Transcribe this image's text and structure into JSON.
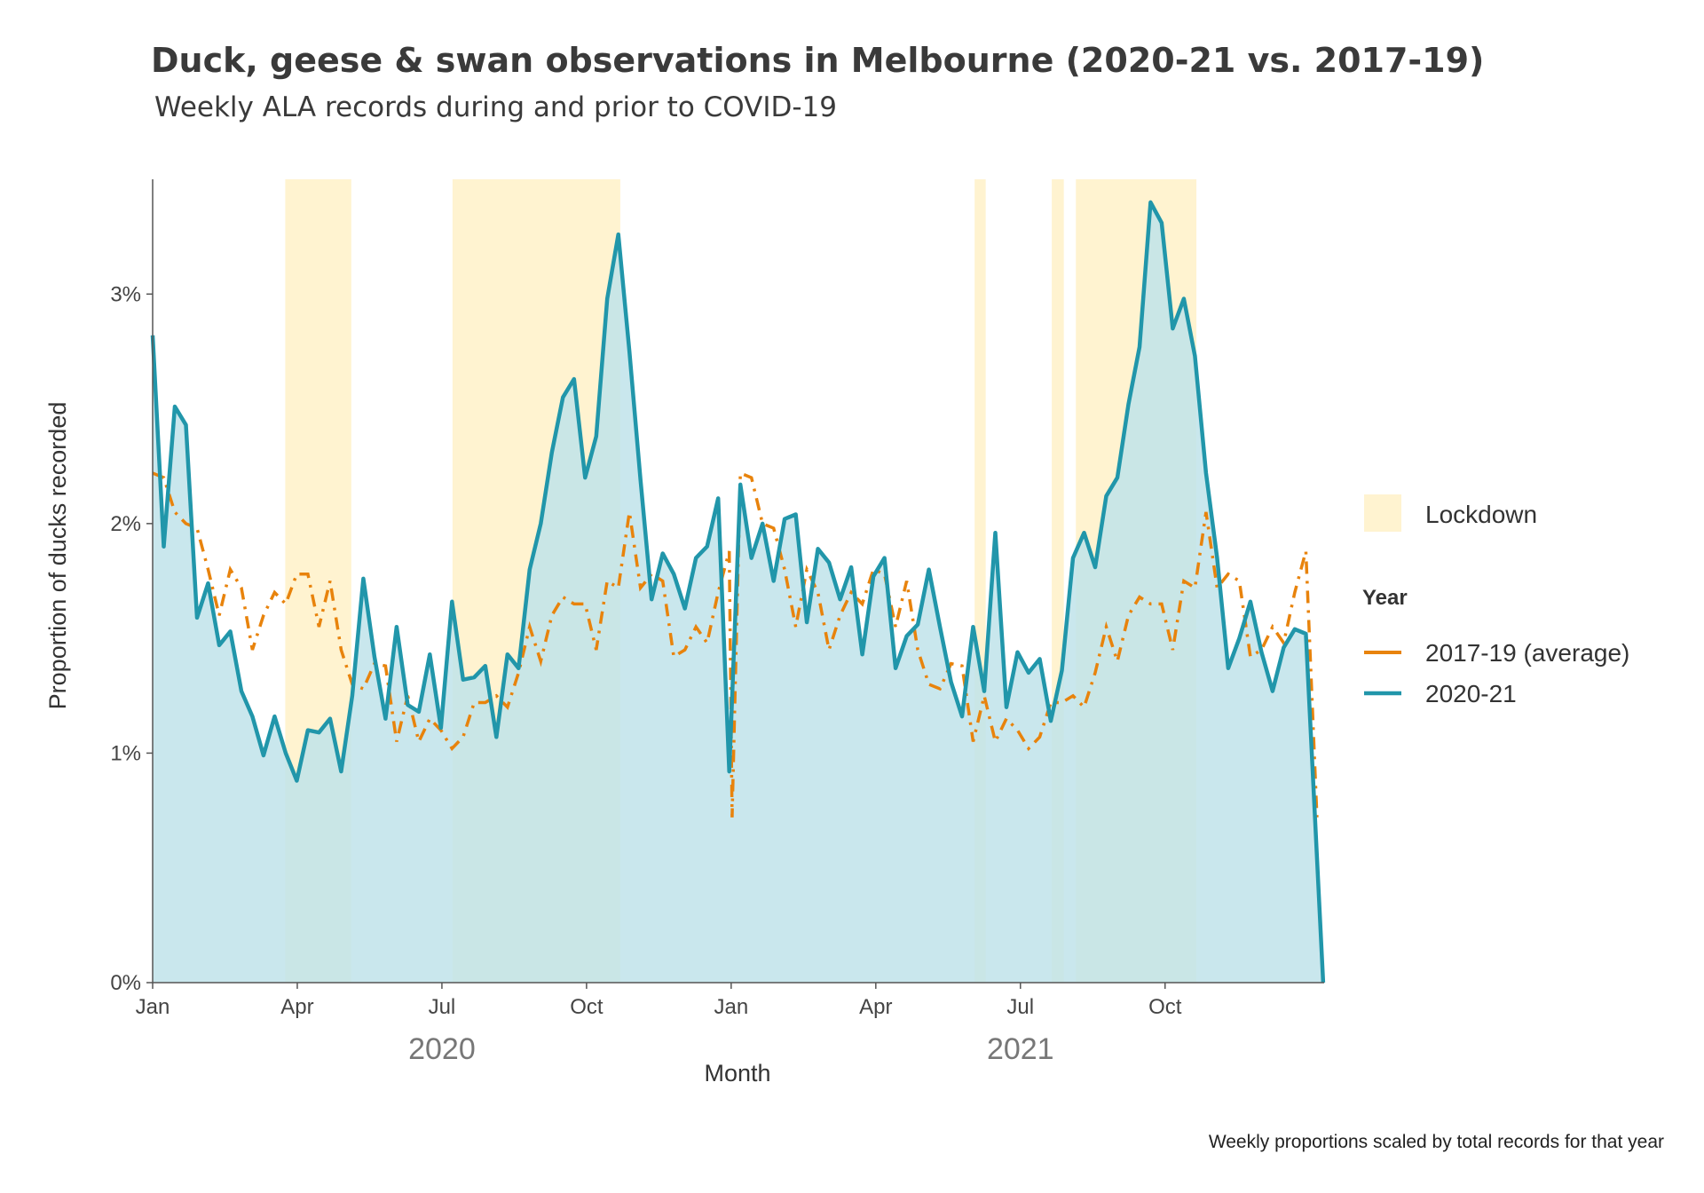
{
  "chart_data": {
    "type": "line",
    "title": "Duck, geese & swan observations in Melbourne (2020-21 vs. 2017-19)",
    "subtitle": "Weekly ALA records during and prior to COVID-19",
    "xlabel": "Month",
    "ylabel": "Proportion of ducks recorded",
    "caption": "Weekly proportions scaled by total records for that year",
    "x_tick_labels": [
      "Jan",
      "Apr",
      "Jul",
      "Oct",
      "Jan",
      "Apr",
      "Jul",
      "Oct"
    ],
    "x_tick_months": [
      0,
      3,
      6,
      9,
      12,
      15,
      18,
      21
    ],
    "year_labels": [
      {
        "label": "2020",
        "month": 6
      },
      {
        "label": "2021",
        "month": 18
      }
    ],
    "y_tick_labels": [
      "0%",
      "1%",
      "2%",
      "3%"
    ],
    "y_ticks": [
      0,
      1,
      2,
      3
    ],
    "ylim": [
      0,
      3.5
    ],
    "xlim_months": [
      0,
      24.3
    ],
    "legend": {
      "shade_label": "Lockdown",
      "year_title": "Year"
    },
    "lockdowns": [
      {
        "start": 2.75,
        "end": 4.12
      },
      {
        "start": 6.22,
        "end": 9.7
      },
      {
        "start": 17.05,
        "end": 17.28
      },
      {
        "start": 18.65,
        "end": 18.9
      },
      {
        "start": 19.15,
        "end": 21.65
      }
    ],
    "colors": {
      "lockdown": "#fff3d0",
      "series_2017_19": "#e8830c",
      "series_2020_21": "#2196aa",
      "area_2020_21": "#bfe3ea"
    },
    "series": [
      {
        "name": "2017-19 (average)",
        "style": "dashed",
        "points": [
          [
            0,
            2.22
          ],
          [
            0.23,
            2.2
          ],
          [
            0.46,
            2.05
          ],
          [
            0.69,
            2.0
          ],
          [
            0.92,
            1.98
          ],
          [
            1.15,
            1.8
          ],
          [
            1.38,
            1.6
          ],
          [
            1.61,
            1.8
          ],
          [
            1.84,
            1.72
          ],
          [
            2.07,
            1.45
          ],
          [
            2.3,
            1.6
          ],
          [
            2.53,
            1.7
          ],
          [
            2.76,
            1.65
          ],
          [
            2.99,
            1.78
          ],
          [
            3.22,
            1.78
          ],
          [
            3.45,
            1.55
          ],
          [
            3.68,
            1.75
          ],
          [
            3.91,
            1.45
          ],
          [
            4.14,
            1.3
          ],
          [
            4.37,
            1.28
          ],
          [
            4.6,
            1.39
          ],
          [
            4.83,
            1.38
          ],
          [
            5.06,
            1.05
          ],
          [
            5.29,
            1.25
          ],
          [
            5.52,
            1.05
          ],
          [
            5.75,
            1.15
          ],
          [
            5.98,
            1.1
          ],
          [
            6.21,
            1.02
          ],
          [
            6.44,
            1.07
          ],
          [
            6.67,
            1.22
          ],
          [
            6.9,
            1.22
          ],
          [
            7.13,
            1.25
          ],
          [
            7.36,
            1.2
          ],
          [
            7.59,
            1.35
          ],
          [
            7.82,
            1.55
          ],
          [
            8.05,
            1.4
          ],
          [
            8.28,
            1.6
          ],
          [
            8.51,
            1.68
          ],
          [
            8.74,
            1.65
          ],
          [
            8.97,
            1.65
          ],
          [
            9.2,
            1.45
          ],
          [
            9.43,
            1.75
          ],
          [
            9.66,
            1.72
          ],
          [
            9.89,
            2.05
          ],
          [
            10.12,
            1.72
          ],
          [
            10.35,
            1.78
          ],
          [
            10.58,
            1.75
          ],
          [
            10.81,
            1.42
          ],
          [
            11.04,
            1.45
          ],
          [
            11.27,
            1.55
          ],
          [
            11.5,
            1.48
          ],
          [
            11.73,
            1.7
          ],
          [
            11.96,
            1.88
          ],
          [
            12.02,
            0.72
          ],
          [
            12.19,
            2.22
          ],
          [
            12.42,
            2.2
          ],
          [
            12.65,
            2.0
          ],
          [
            12.88,
            1.98
          ],
          [
            13.11,
            1.8
          ],
          [
            13.34,
            1.55
          ],
          [
            13.57,
            1.8
          ],
          [
            13.8,
            1.7
          ],
          [
            14.03,
            1.45
          ],
          [
            14.26,
            1.6
          ],
          [
            14.49,
            1.7
          ],
          [
            14.72,
            1.65
          ],
          [
            14.95,
            1.8
          ],
          [
            15.18,
            1.78
          ],
          [
            15.41,
            1.55
          ],
          [
            15.64,
            1.75
          ],
          [
            15.87,
            1.45
          ],
          [
            16.1,
            1.3
          ],
          [
            16.33,
            1.28
          ],
          [
            16.56,
            1.39
          ],
          [
            16.79,
            1.38
          ],
          [
            17.02,
            1.05
          ],
          [
            17.25,
            1.25
          ],
          [
            17.48,
            1.05
          ],
          [
            17.71,
            1.15
          ],
          [
            17.94,
            1.1
          ],
          [
            18.17,
            1.02
          ],
          [
            18.4,
            1.07
          ],
          [
            18.63,
            1.22
          ],
          [
            18.86,
            1.22
          ],
          [
            19.09,
            1.25
          ],
          [
            19.32,
            1.2
          ],
          [
            19.55,
            1.35
          ],
          [
            19.78,
            1.55
          ],
          [
            20.01,
            1.4
          ],
          [
            20.24,
            1.6
          ],
          [
            20.47,
            1.68
          ],
          [
            20.7,
            1.65
          ],
          [
            20.93,
            1.65
          ],
          [
            21.16,
            1.45
          ],
          [
            21.39,
            1.75
          ],
          [
            21.62,
            1.72
          ],
          [
            21.85,
            2.05
          ],
          [
            22.08,
            1.72
          ],
          [
            22.31,
            1.78
          ],
          [
            22.54,
            1.75
          ],
          [
            22.77,
            1.42
          ],
          [
            23.0,
            1.45
          ],
          [
            23.23,
            1.55
          ],
          [
            23.46,
            1.48
          ],
          [
            23.69,
            1.7
          ],
          [
            23.92,
            1.88
          ],
          [
            24.15,
            0.72
          ]
        ]
      },
      {
        "name": "2020-21",
        "style": "solid",
        "points": [
          [
            0,
            2.82
          ],
          [
            0.23,
            1.9
          ],
          [
            0.46,
            2.51
          ],
          [
            0.69,
            2.43
          ],
          [
            0.92,
            1.59
          ],
          [
            1.15,
            1.74
          ],
          [
            1.38,
            1.47
          ],
          [
            1.61,
            1.53
          ],
          [
            1.84,
            1.27
          ],
          [
            2.07,
            1.16
          ],
          [
            2.3,
            0.99
          ],
          [
            2.53,
            1.16
          ],
          [
            2.76,
            1.0
          ],
          [
            2.99,
            0.88
          ],
          [
            3.22,
            1.1
          ],
          [
            3.45,
            1.09
          ],
          [
            3.68,
            1.15
          ],
          [
            3.91,
            0.92
          ],
          [
            4.14,
            1.25
          ],
          [
            4.37,
            1.76
          ],
          [
            4.6,
            1.42
          ],
          [
            4.83,
            1.15
          ],
          [
            5.06,
            1.55
          ],
          [
            5.29,
            1.21
          ],
          [
            5.52,
            1.18
          ],
          [
            5.75,
            1.43
          ],
          [
            5.98,
            1.11
          ],
          [
            6.21,
            1.66
          ],
          [
            6.44,
            1.32
          ],
          [
            6.67,
            1.33
          ],
          [
            6.9,
            1.38
          ],
          [
            7.13,
            1.07
          ],
          [
            7.36,
            1.43
          ],
          [
            7.59,
            1.37
          ],
          [
            7.82,
            1.8
          ],
          [
            8.05,
            2.0
          ],
          [
            8.28,
            2.31
          ],
          [
            8.51,
            2.55
          ],
          [
            8.74,
            2.63
          ],
          [
            8.97,
            2.2
          ],
          [
            9.2,
            2.38
          ],
          [
            9.43,
            2.98
          ],
          [
            9.66,
            3.26
          ],
          [
            9.89,
            2.75
          ],
          [
            10.12,
            2.19
          ],
          [
            10.35,
            1.67
          ],
          [
            10.58,
            1.87
          ],
          [
            10.81,
            1.78
          ],
          [
            11.04,
            1.63
          ],
          [
            11.27,
            1.85
          ],
          [
            11.5,
            1.9
          ],
          [
            11.73,
            2.11
          ],
          [
            11.96,
            0.92
          ],
          [
            12.19,
            2.17
          ],
          [
            12.42,
            1.85
          ],
          [
            12.65,
            2.0
          ],
          [
            12.88,
            1.75
          ],
          [
            13.11,
            2.02
          ],
          [
            13.34,
            2.04
          ],
          [
            13.57,
            1.57
          ],
          [
            13.8,
            1.89
          ],
          [
            14.03,
            1.83
          ],
          [
            14.26,
            1.67
          ],
          [
            14.49,
            1.81
          ],
          [
            14.72,
            1.43
          ],
          [
            14.95,
            1.77
          ],
          [
            15.18,
            1.85
          ],
          [
            15.41,
            1.37
          ],
          [
            15.64,
            1.51
          ],
          [
            15.87,
            1.56
          ],
          [
            16.1,
            1.8
          ],
          [
            16.33,
            1.55
          ],
          [
            16.56,
            1.31
          ],
          [
            16.79,
            1.16
          ],
          [
            17.02,
            1.55
          ],
          [
            17.25,
            1.27
          ],
          [
            17.48,
            1.96
          ],
          [
            17.71,
            1.2
          ],
          [
            17.94,
            1.44
          ],
          [
            18.17,
            1.35
          ],
          [
            18.4,
            1.41
          ],
          [
            18.63,
            1.14
          ],
          [
            18.86,
            1.36
          ],
          [
            19.09,
            1.85
          ],
          [
            19.32,
            1.96
          ],
          [
            19.55,
            1.81
          ],
          [
            19.78,
            2.12
          ],
          [
            20.01,
            2.2
          ],
          [
            20.24,
            2.52
          ],
          [
            20.47,
            2.77
          ],
          [
            20.7,
            3.4
          ],
          [
            20.93,
            3.31
          ],
          [
            21.16,
            2.85
          ],
          [
            21.39,
            2.98
          ],
          [
            21.62,
            2.73
          ],
          [
            21.85,
            2.22
          ],
          [
            22.08,
            1.85
          ],
          [
            22.31,
            1.37
          ],
          [
            22.54,
            1.5
          ],
          [
            22.77,
            1.66
          ],
          [
            23.0,
            1.44
          ],
          [
            23.23,
            1.27
          ],
          [
            23.46,
            1.46
          ],
          [
            23.69,
            1.54
          ],
          [
            23.92,
            1.52
          ],
          [
            24.28,
            0.0
          ]
        ]
      }
    ]
  }
}
